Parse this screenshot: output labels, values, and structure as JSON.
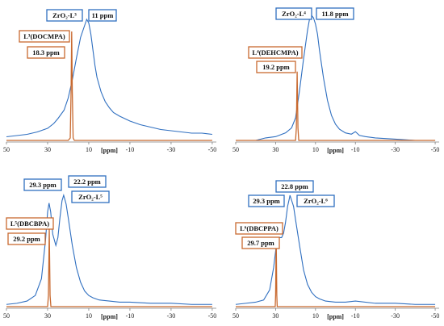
{
  "colors": {
    "blue": "#2f6fc0",
    "orange": "#c8692f",
    "axis": "#808080",
    "text": "#111111"
  },
  "chart_data": [
    {
      "type": "line",
      "name": "panel-1",
      "xlabel": "[ppm]",
      "xlim": [
        50,
        -52
      ],
      "ticks": [
        50,
        30,
        10,
        -10,
        -30,
        -50
      ],
      "tick_labels": [
        "50",
        "30",
        "10",
        "-10",
        "-30",
        "-50"
      ],
      "series": [
        {
          "role": "blue",
          "label": "ZrO₂-L³",
          "peak_label": "11 ppm",
          "x": [
            50,
            45,
            40,
            35,
            30,
            27,
            25,
            22,
            20,
            18,
            16,
            14,
            12,
            11,
            10,
            9,
            8,
            7,
            6,
            4,
            2,
            0,
            -2,
            -5,
            -10,
            -15,
            -20,
            -25,
            -30,
            -35,
            -40,
            -45,
            -50
          ],
          "y": [
            0.03,
            0.04,
            0.05,
            0.07,
            0.1,
            0.14,
            0.18,
            0.25,
            0.35,
            0.5,
            0.68,
            0.85,
            0.95,
            1.0,
            0.97,
            0.88,
            0.75,
            0.62,
            0.52,
            0.4,
            0.32,
            0.27,
            0.23,
            0.2,
            0.16,
            0.13,
            0.11,
            0.09,
            0.08,
            0.07,
            0.06,
            0.06,
            0.05
          ]
        },
        {
          "role": "orange",
          "label": "L³(DOCMPA)",
          "peak_label": "18.3 ppm",
          "x": [
            50,
            20,
            19,
            18.6,
            18.3,
            18.0,
            17.6,
            17,
            -50
          ],
          "y": [
            0,
            0,
            0.02,
            0.4,
            0.9,
            0.4,
            0.02,
            0,
            0
          ]
        }
      ]
    },
    {
      "type": "line",
      "name": "panel-2",
      "xlabel": "[ppm]",
      "xlim": [
        50,
        -52
      ],
      "ticks": [
        50,
        30,
        10,
        -10,
        -30,
        -50
      ],
      "tick_labels": [
        "50",
        "30",
        "10",
        "-10",
        "-30",
        "-50"
      ],
      "series": [
        {
          "role": "blue",
          "label": "ZrO₂-L⁴",
          "peak_label": "11.8 ppm",
          "x": [
            50,
            40,
            35,
            30,
            25,
            22,
            20,
            18,
            16,
            14,
            13,
            12,
            11,
            10,
            9,
            8,
            6,
            4,
            2,
            0,
            -2,
            -5,
            -8,
            -10,
            -12,
            -15,
            -20,
            -30,
            -40,
            -50
          ],
          "y": [
            0.0,
            0.0,
            0.02,
            0.03,
            0.06,
            0.1,
            0.18,
            0.4,
            0.65,
            0.88,
            0.97,
            1.0,
            0.98,
            0.93,
            0.85,
            0.72,
            0.5,
            0.32,
            0.2,
            0.13,
            0.09,
            0.06,
            0.05,
            0.07,
            0.04,
            0.03,
            0.02,
            0.01,
            0.0,
            0.0
          ]
        },
        {
          "role": "orange",
          "label": "L⁴(DEHCMPA)",
          "peak_label": "19.2 ppm",
          "x": [
            50,
            20,
            19.6,
            19.2,
            18.8,
            18.4,
            -50
          ],
          "y": [
            0,
            0,
            0.1,
            0.55,
            0.1,
            0,
            0
          ]
        }
      ]
    },
    {
      "type": "line",
      "name": "panel-3",
      "xlabel": "[ppm]",
      "xlim": [
        50,
        -52
      ],
      "ticks": [
        50,
        30,
        10,
        -10,
        -30,
        -50
      ],
      "tick_labels": [
        "50",
        "30",
        "10",
        "-10",
        "-30",
        "-50"
      ],
      "series": [
        {
          "role": "blue",
          "label": "ZrO₂-L⁵",
          "peak_label": "22.2 ppm",
          "x": [
            50,
            45,
            40,
            36,
            33,
            31,
            30,
            29.3,
            28.5,
            27.5,
            26,
            25,
            24,
            23,
            22.2,
            21,
            20,
            18,
            16,
            14,
            12,
            10,
            8,
            5,
            0,
            -5,
            -10,
            -20,
            -30,
            -40,
            -50
          ],
          "y": [
            0.02,
            0.03,
            0.05,
            0.1,
            0.25,
            0.6,
            0.85,
            0.93,
            0.85,
            0.65,
            0.55,
            0.62,
            0.8,
            0.95,
            1.0,
            0.92,
            0.8,
            0.55,
            0.35,
            0.22,
            0.14,
            0.1,
            0.08,
            0.06,
            0.05,
            0.04,
            0.04,
            0.03,
            0.03,
            0.02,
            0.02
          ]
        },
        {
          "role": "orange",
          "label": "L⁵(DBCBPA)",
          "peak_label": "29.2 ppm",
          "x": [
            50,
            30,
            29.6,
            29.2,
            28.8,
            28.4,
            -50
          ],
          "y": [
            0,
            0,
            0.1,
            0.7,
            0.1,
            0,
            0
          ]
        },
        {
          "role": "blue-label",
          "peak_label": "29.3 ppm",
          "x": [
            29.3
          ],
          "y": [
            0.93
          ]
        }
      ]
    },
    {
      "type": "line",
      "name": "panel-4",
      "xlabel": "[ppm]",
      "xlim": [
        50,
        -52
      ],
      "ticks": [
        50,
        30,
        10,
        -10,
        -30,
        -50
      ],
      "tick_labels": [
        "50",
        "30",
        "10",
        "-10",
        "-30",
        "-50"
      ],
      "series": [
        {
          "role": "blue",
          "label": "ZrO₂-L⁶",
          "peak_label": "22.8 ppm",
          "x": [
            50,
            45,
            40,
            36,
            33,
            31,
            29.3,
            28,
            27,
            26,
            25,
            24,
            23,
            22.8,
            21,
            20,
            18,
            16,
            14,
            12,
            10,
            8,
            5,
            0,
            -5,
            -10,
            -20,
            -30,
            -40,
            -50
          ],
          "y": [
            0.02,
            0.03,
            0.04,
            0.06,
            0.15,
            0.35,
            0.6,
            0.62,
            0.62,
            0.66,
            0.76,
            0.9,
            0.98,
            1.0,
            0.9,
            0.78,
            0.55,
            0.33,
            0.2,
            0.13,
            0.09,
            0.07,
            0.05,
            0.04,
            0.04,
            0.05,
            0.03,
            0.03,
            0.02,
            0.02
          ]
        },
        {
          "role": "orange",
          "label": "L⁶(DBCPPA)",
          "peak_label": "29.7 ppm",
          "x": [
            50,
            30.2,
            30.0,
            29.7,
            29.4,
            29.2,
            -50
          ],
          "y": [
            0,
            0,
            0.1,
            0.62,
            0.1,
            0,
            0
          ]
        },
        {
          "role": "blue-label",
          "peak_label": "29.3 ppm",
          "x": [
            29.3
          ],
          "y": [
            0.6
          ]
        }
      ]
    }
  ]
}
